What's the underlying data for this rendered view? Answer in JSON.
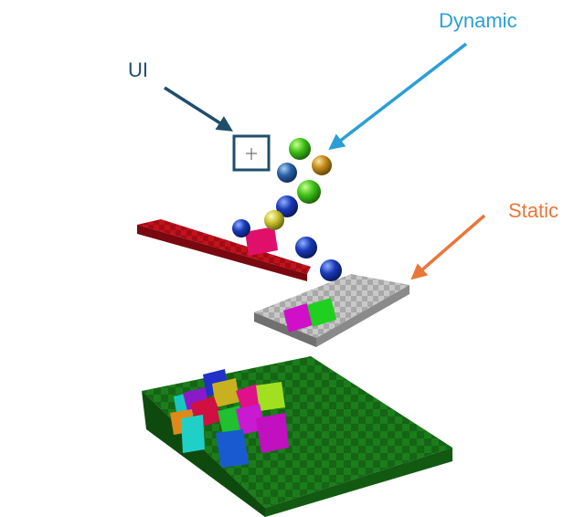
{
  "labels": {
    "ui": "UI",
    "dynamic": "Dynamic",
    "static": "Static"
  },
  "colors": {
    "ui": "#1f4e6b",
    "dynamic": "#2a9fd6",
    "static": "#e8773a",
    "ground": "#1a7a1a",
    "static_platform": "#b5b5b5",
    "red_beam": "#c0101a"
  },
  "icons": {
    "crosshair": "crosshair-icon"
  }
}
